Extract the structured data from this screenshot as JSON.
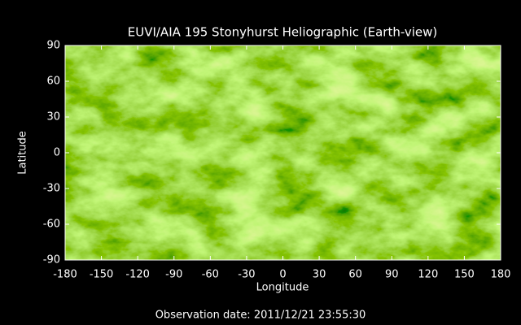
{
  "chart_data": {
    "type": "image",
    "title": "EUVI/AIA 195 Stonyhurst Heliographic (Earth-view)",
    "x_label": "Longitude",
    "y_label": "Latitude",
    "footer": "Observation date: 2011/12/21 23:55:30",
    "xlim": [
      -180,
      180
    ],
    "xticks": [
      -180,
      -150,
      -120,
      -90,
      -60,
      -30,
      0,
      30,
      60,
      90,
      120,
      150,
      180
    ],
    "ylim": [
      -90,
      90
    ],
    "yticks": [
      -90,
      -60,
      -30,
      0,
      30,
      60,
      90
    ],
    "color": "#7fbf10"
  }
}
